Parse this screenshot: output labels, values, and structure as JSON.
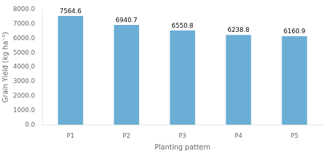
{
  "chart_data": {
    "type": "bar",
    "categories": [
      "P1",
      "P2",
      "P3",
      "P4",
      "P5"
    ],
    "values": [
      7564.6,
      6940.7,
      6550.8,
      6238.8,
      6160.9
    ],
    "color": "#6aaed6",
    "xlabel": "Planting pattern",
    "ylabel": "Grain Yield (kg ha⁻¹)",
    "ylim": [
      0,
      8000
    ],
    "yticks": [
      {
        "value": 0,
        "label": "0.0"
      },
      {
        "value": 1000,
        "label": "1000.0"
      },
      {
        "value": 2000,
        "label": "2000.0"
      },
      {
        "value": 3000,
        "label": "3000.0"
      },
      {
        "value": 4000,
        "label": "4000.0"
      },
      {
        "value": 5000,
        "label": "5000.0"
      },
      {
        "value": 6000,
        "label": "6000.0"
      },
      {
        "value": 7000,
        "label": "7000.0"
      },
      {
        "value": 8000,
        "label": "8000.0"
      }
    ],
    "data_labels": true,
    "grid": false
  }
}
